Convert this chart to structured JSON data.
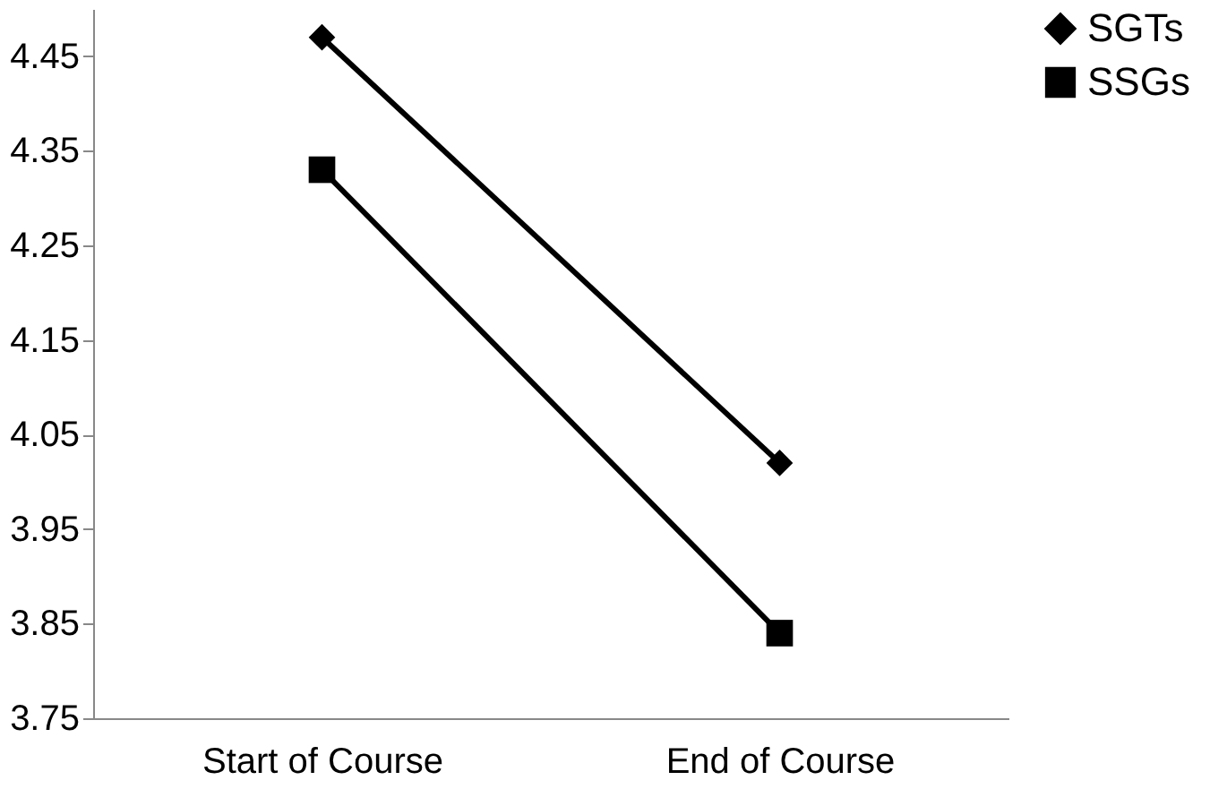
{
  "chart_data": {
    "type": "line",
    "categories": [
      "Start of Course",
      "End of Course"
    ],
    "series": [
      {
        "name": "SGTs",
        "color": "#000000",
        "marker": "diamond",
        "values": [
          4.47,
          4.02
        ]
      },
      {
        "name": "SSGs",
        "color": "#000000",
        "marker": "square",
        "values": [
          4.33,
          3.84
        ]
      }
    ],
    "ylim": [
      3.75,
      4.5
    ],
    "yticks": [
      3.75,
      3.85,
      3.95,
      4.05,
      4.15,
      4.25,
      4.35,
      4.45
    ],
    "grid": false,
    "legend": "right",
    "line_style": "solid"
  }
}
